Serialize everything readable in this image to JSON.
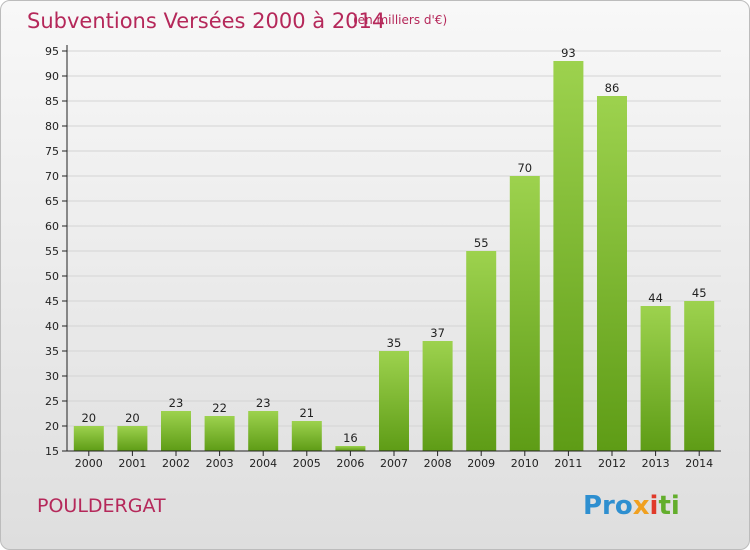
{
  "header": {
    "title": "Subventions Versées 2000 à 2014",
    "unit": "(en milliers d'€)"
  },
  "footer": {
    "place": "POULDERGAT",
    "logo_parts": [
      "Pro",
      "x",
      "i",
      "ti"
    ]
  },
  "colors": {
    "title": "#b5285a",
    "bar_light": "#9dd24e",
    "bar_dark": "#5e9c16",
    "axis": "#222222",
    "grid": "#d4d4d4"
  },
  "chart_data": {
    "type": "bar",
    "title": "Subventions Versées 2000 à 2014",
    "subtitle": "(en milliers d'€)",
    "xlabel": "",
    "ylabel": "",
    "categories": [
      "2000",
      "2001",
      "2002",
      "2003",
      "2004",
      "2005",
      "2006",
      "2007",
      "2008",
      "2009",
      "2010",
      "2011",
      "2012",
      "2013",
      "2014"
    ],
    "values": [
      20,
      20,
      23,
      22,
      23,
      21,
      16,
      35,
      37,
      55,
      70,
      93,
      86,
      44,
      45
    ],
    "ylim": [
      15,
      95
    ],
    "yticks": [
      15,
      20,
      25,
      30,
      35,
      40,
      45,
      50,
      55,
      60,
      65,
      70,
      75,
      80,
      85,
      90,
      95
    ],
    "grid": true,
    "data_labels": true,
    "legend": "none"
  }
}
